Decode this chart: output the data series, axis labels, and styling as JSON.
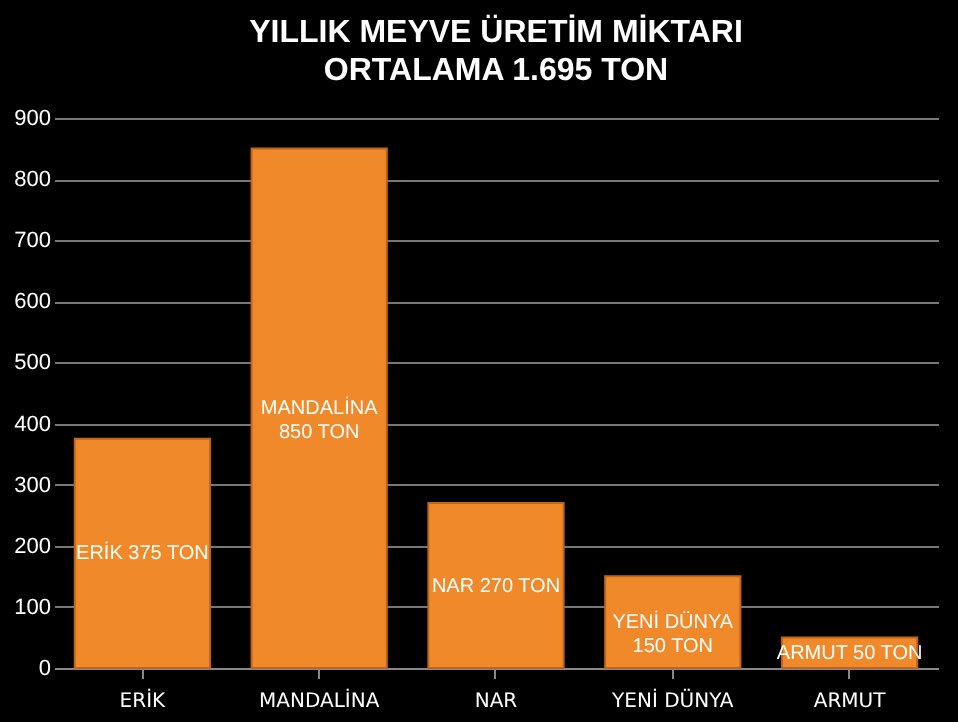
{
  "chart_data": {
    "type": "bar",
    "title": "YILLIK MEYVE ÜRETİM MİKTARI",
    "subtitle": "ORTALAMA 1.695 TON",
    "categories": [
      "ERİK",
      "MANDALİNA",
      "NAR",
      "YENİ DÜNYA",
      "ARMUT"
    ],
    "values": [
      375,
      850,
      270,
      150,
      50
    ],
    "value_labels": [
      "ERİK 375 TON",
      "MANDALİNA\n850 TON",
      "NAR 270 TON",
      "YENİ DÜNYA\n150 TON",
      "ARMUT 50 TON"
    ],
    "color": "#f0892a",
    "ylim": [
      0,
      900
    ],
    "yticks": [
      0,
      100,
      200,
      300,
      400,
      500,
      600,
      700,
      800,
      900
    ],
    "grid": "y"
  }
}
